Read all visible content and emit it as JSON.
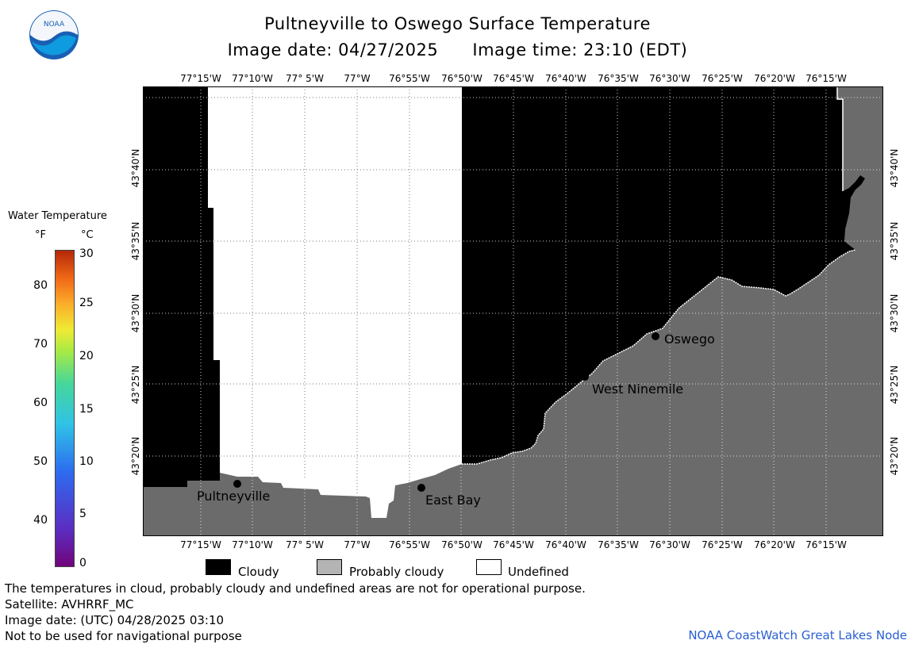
{
  "header": {
    "title": "Pultneyville to Oswego Surface Temperature",
    "image_date": "Image date: 04/27/2025",
    "image_time": "Image time: 23:10 (EDT)"
  },
  "logo": {
    "text": "NOAA"
  },
  "map": {
    "lon_labels": [
      "77°15'W",
      "77°10'W",
      "77° 5'W",
      "77°W",
      "76°55'W",
      "76°50'W",
      "76°45'W",
      "76°40'W",
      "76°35'W",
      "76°30'W",
      "76°25'W",
      "76°20'W",
      "76°15'W"
    ],
    "lat_labels": [
      "43°40'N",
      "43°35'N",
      "43°30'N",
      "43°25'N",
      "43°20'N"
    ],
    "places": [
      {
        "name": "Pultneyville"
      },
      {
        "name": "East Bay"
      },
      {
        "name": "West Ninemile"
      },
      {
        "name": "Oswego"
      }
    ],
    "colors": {
      "cloudy": "#000000",
      "probably_cloudy": "#6b6b6b",
      "undefined": "#ffffff"
    }
  },
  "colorbar": {
    "title": "Water Temperature",
    "unit_f": "°F",
    "unit_c": "°C",
    "f_ticks": [
      "80",
      "70",
      "60",
      "50",
      "40"
    ],
    "c_ticks": [
      "30",
      "25",
      "20",
      "15",
      "10",
      "5",
      "0"
    ]
  },
  "legend": {
    "cloudy": "Cloudy",
    "probably_cloudy": "Probably cloudy",
    "undefined": "Undefined"
  },
  "footer": {
    "line1": "The temperatures in cloud, probably cloudy and undefined areas are not for operational purpose.",
    "line2": "Satellite: AVHRRF_MC",
    "line3": "Image date: (UTC) 04/28/2025  03:10",
    "line4": "Not to be used for navigational purpose",
    "credit": "NOAA CoastWatch Great Lakes Node"
  }
}
